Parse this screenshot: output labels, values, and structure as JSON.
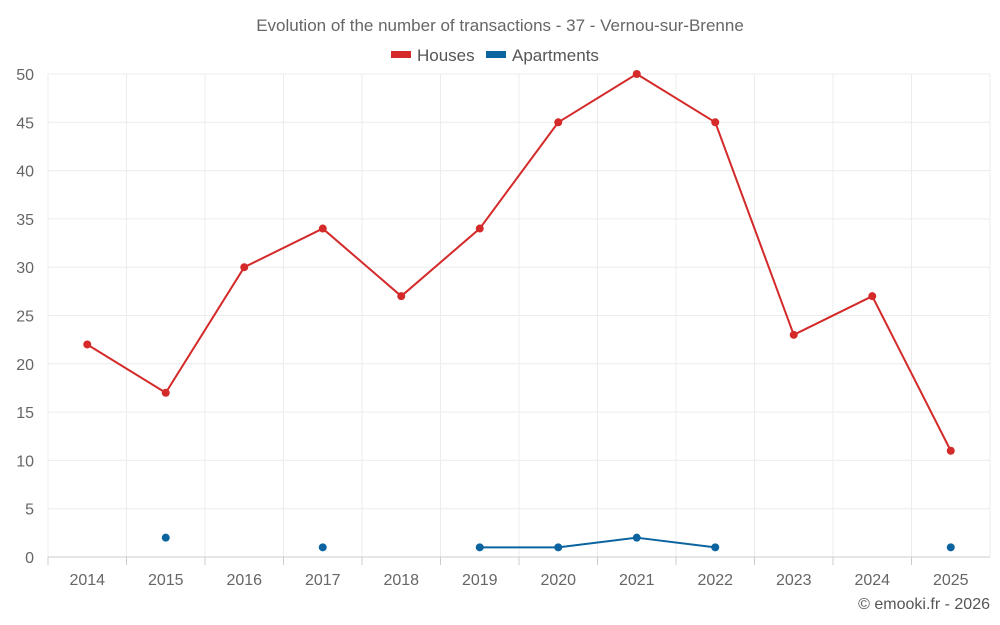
{
  "chart_data": {
    "type": "line",
    "title": "Evolution of the number of transactions - 37 - Vernou-sur-Brenne",
    "categories": [
      "2014",
      "2015",
      "2016",
      "2017",
      "2018",
      "2019",
      "2020",
      "2021",
      "2022",
      "2023",
      "2024",
      "2025"
    ],
    "series": [
      {
        "name": "Houses",
        "color": "#d42a2a",
        "values": [
          22,
          17,
          30,
          34,
          27,
          34,
          45,
          50,
          45,
          23,
          27,
          11
        ]
      },
      {
        "name": "Apartments",
        "color": "#0b64a0",
        "values": [
          null,
          2,
          null,
          1,
          null,
          1,
          1,
          2,
          1,
          null,
          null,
          1
        ]
      }
    ],
    "ylim": [
      0,
      50
    ],
    "yticks": [
      0,
      5,
      10,
      15,
      20,
      25,
      30,
      35,
      40,
      45,
      50
    ],
    "xlabel": "",
    "ylabel": "",
    "grid": true,
    "legend": "top-center"
  },
  "credit": "© emooki.fr - 2026"
}
